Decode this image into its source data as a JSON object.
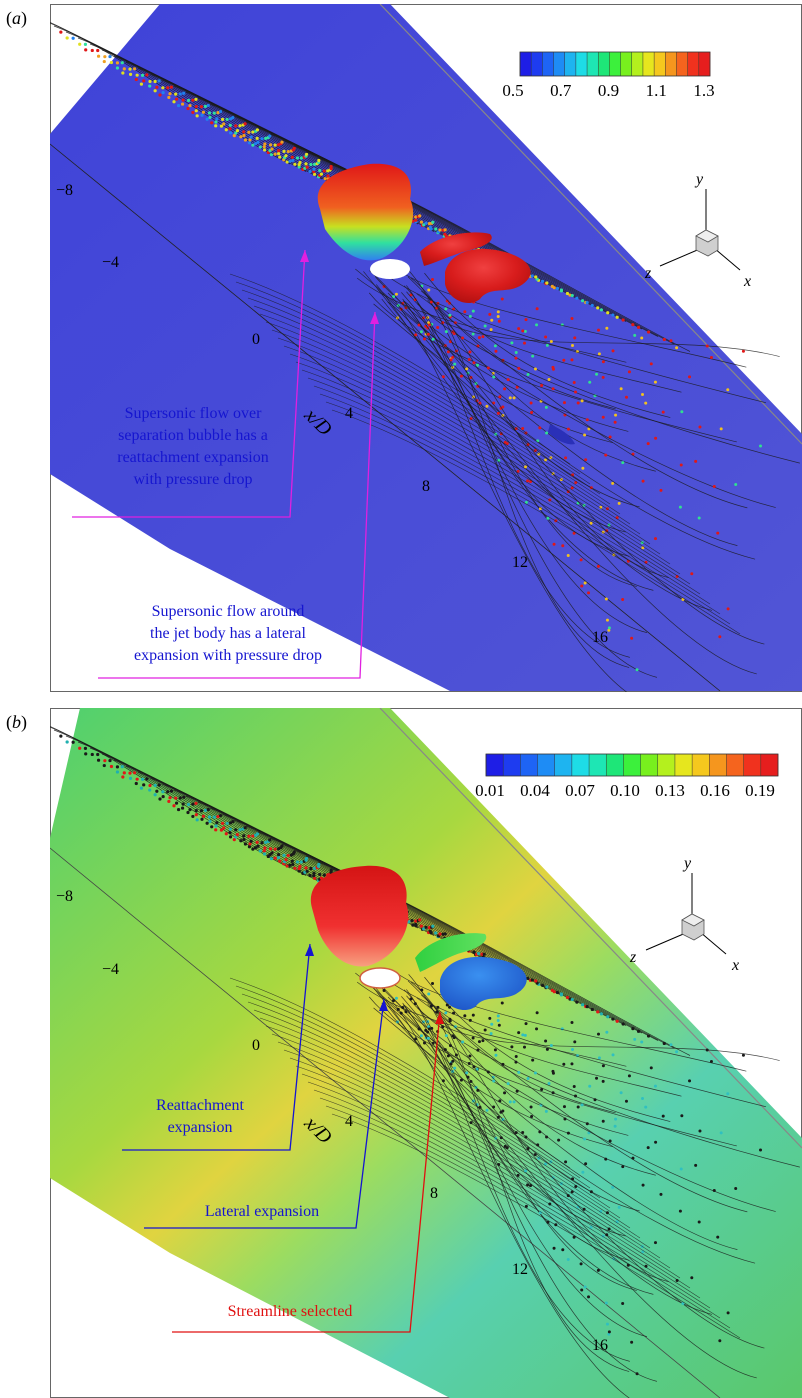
{
  "panels": [
    {
      "label": "(a)",
      "label_letter": "a",
      "colorbar": {
        "ticks": [
          "0.5",
          "0.7",
          "0.9",
          "1.1",
          "1.3"
        ],
        "colors": [
          "#1e1ee6",
          "#1e3cf0",
          "#1e64f5",
          "#1e8cf5",
          "#1eb4f0",
          "#1edce6",
          "#1ee6b4",
          "#1ee678",
          "#3cf03c",
          "#78f01e",
          "#b4f01e",
          "#e6e61e",
          "#f5c81e",
          "#f5961e",
          "#f5641e",
          "#f0321e",
          "#e61e1e"
        ]
      },
      "axis_ticks": [
        "−8",
        "−4",
        "0",
        "4",
        "8",
        "12",
        "16"
      ],
      "axis_label": "x/D",
      "triad": {
        "y": "y",
        "z": "z",
        "x": "x"
      },
      "annotations": [
        {
          "lines": [
            "Supersonic flow over",
            "separation bubble has a",
            "reattachment expansion",
            "with pressure drop"
          ],
          "color": "#1515d0",
          "line_color": "#e020e0"
        },
        {
          "lines": [
            "Supersonic flow around",
            "the jet body has a lateral",
            "expansion with pressure drop"
          ],
          "color": "#1515d0",
          "line_color": "#e020e0"
        }
      ],
      "surface_color": "#4a4ed6"
    },
    {
      "label": "(b)",
      "label_letter": "b",
      "colorbar": {
        "ticks": [
          "0.01",
          "0.04",
          "0.07",
          "0.10",
          "0.13",
          "0.16",
          "0.19"
        ],
        "colors": [
          "#1e1ee6",
          "#1e3cf0",
          "#1e64f5",
          "#1e8cf5",
          "#1eb4f0",
          "#1edce6",
          "#1ee6b4",
          "#1ee678",
          "#3cf03c",
          "#78f01e",
          "#b4f01e",
          "#e6e61e",
          "#f5c81e",
          "#f5961e",
          "#f5641e",
          "#f0321e",
          "#e61e1e"
        ]
      },
      "axis_ticks": [
        "−8",
        "−4",
        "0",
        "4",
        "8",
        "12",
        "16"
      ],
      "axis_label": "x/D",
      "triad": {
        "y": "y",
        "z": "z",
        "x": "x"
      },
      "annotations": [
        {
          "lines": [
            "Reattachment",
            "expansion"
          ],
          "color": "#1515d0",
          "line_color": "#1515d0"
        },
        {
          "lines": [
            "Lateral expansion"
          ],
          "color": "#1515d0",
          "line_color": "#1515d0"
        },
        {
          "lines": [
            "Streamline selected"
          ],
          "color": "#e01010",
          "line_color": "#e01010"
        }
      ],
      "surface_color": "#5ac86a"
    }
  ]
}
